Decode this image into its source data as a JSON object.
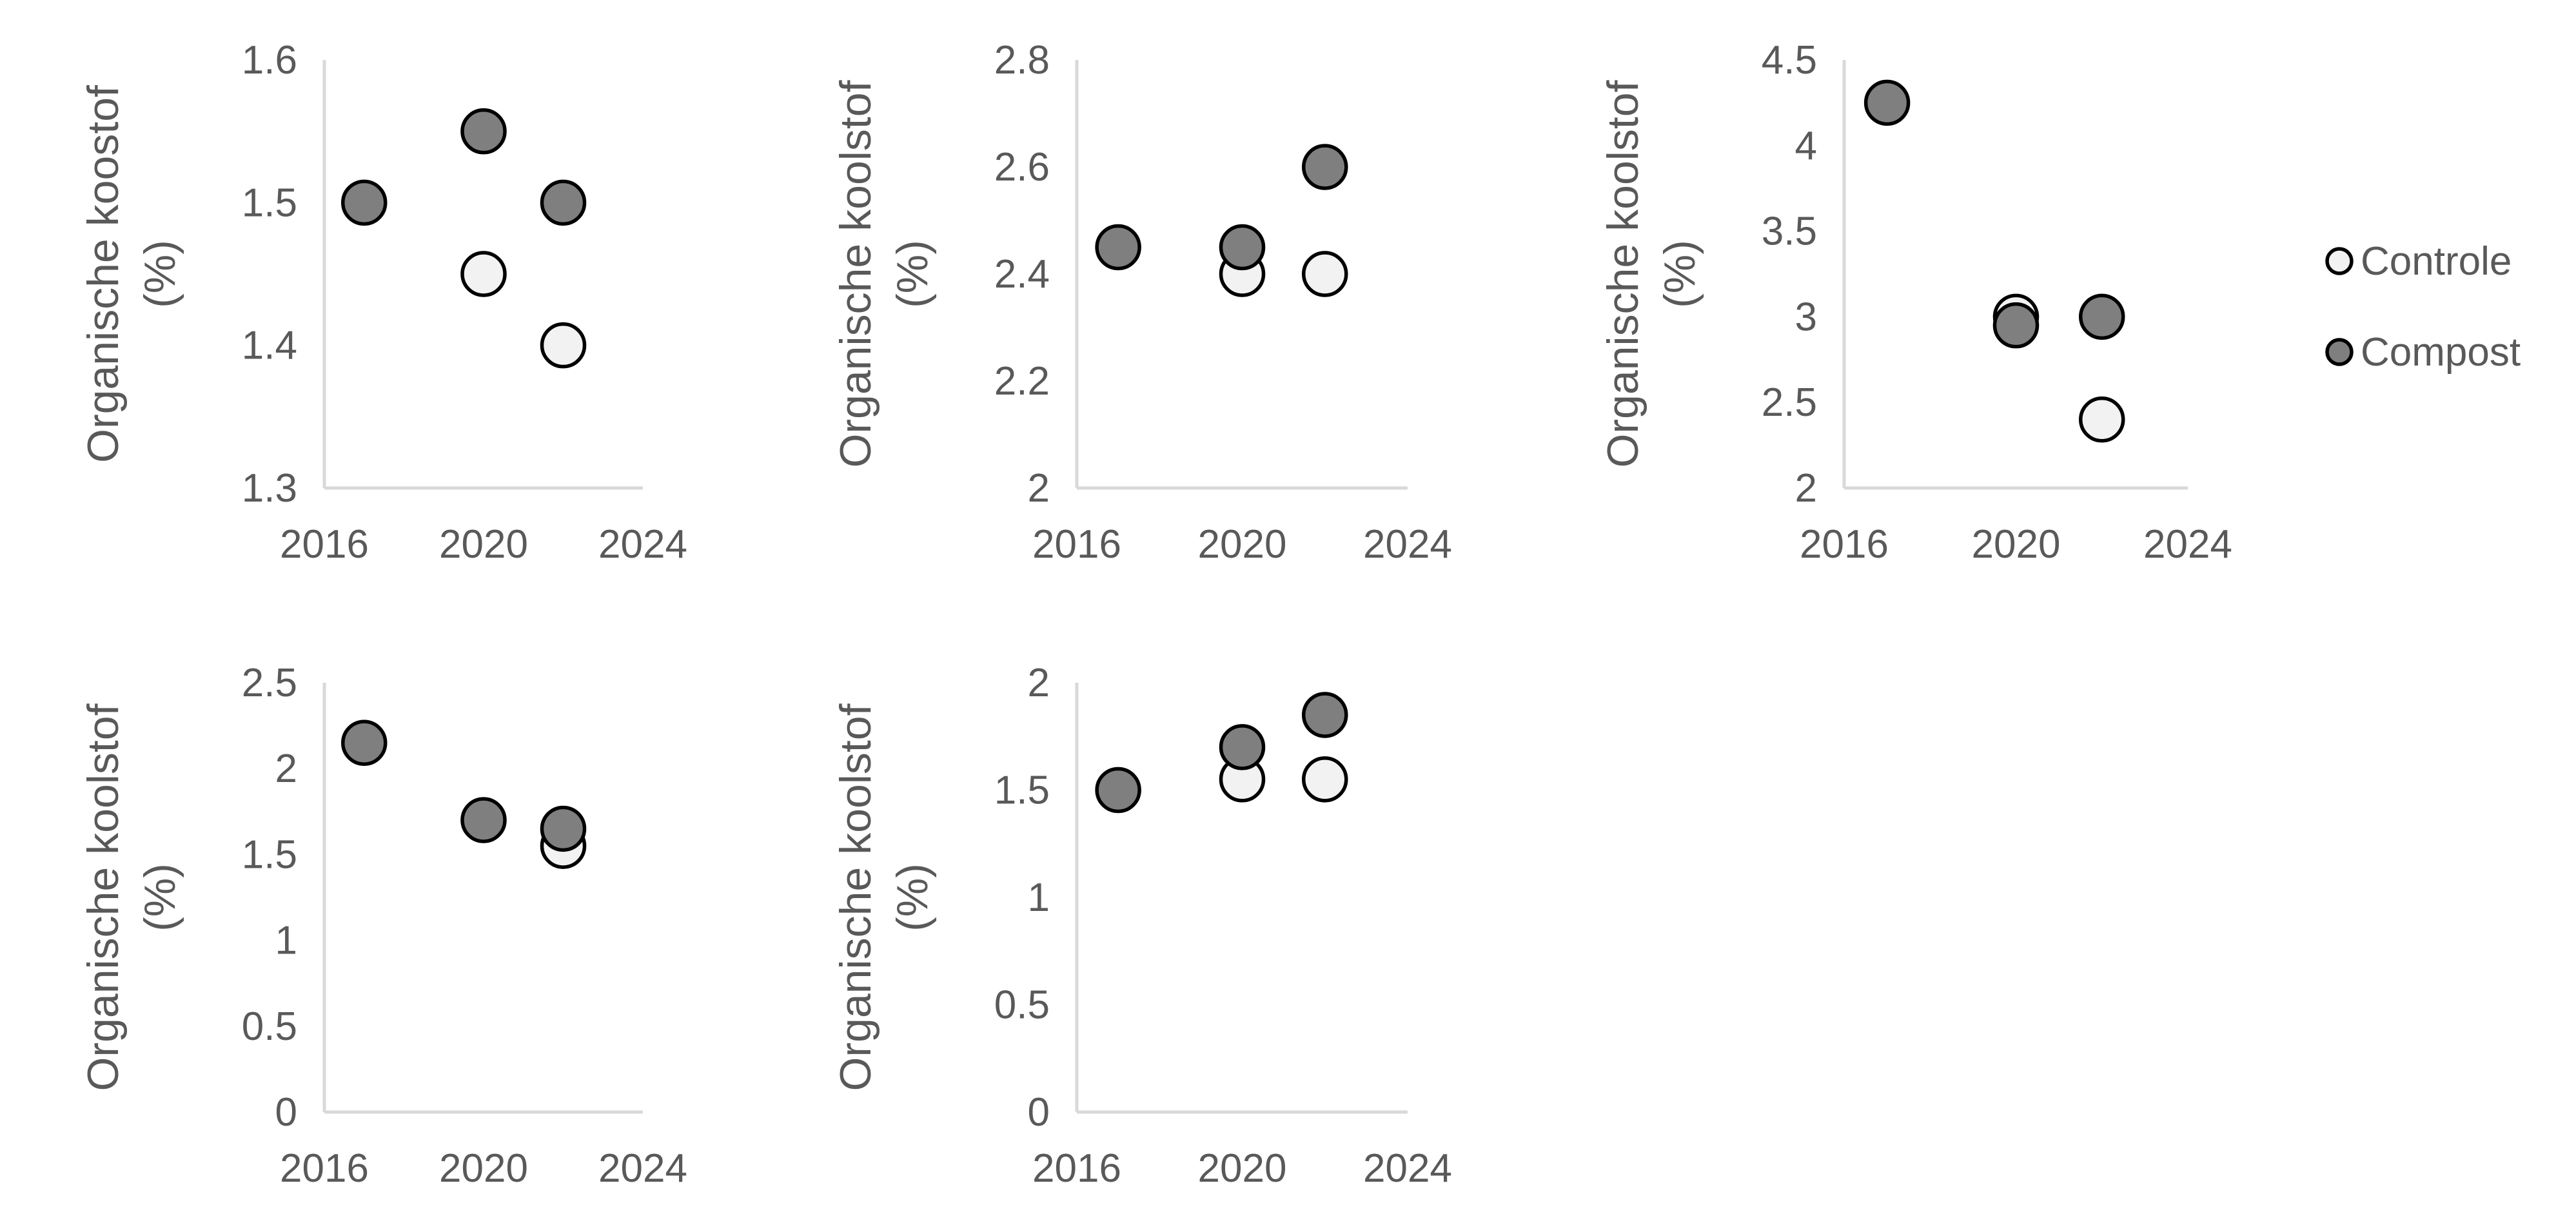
{
  "colors": {
    "controle_fill": "#f2f2f2",
    "compost_fill": "#7f7f7f",
    "marker_stroke": "#000000",
    "axis": "#d9d9d9",
    "text": "#595959"
  },
  "legend": {
    "placement": "right",
    "items": [
      {
        "label": "Controle",
        "color": "#f2f2f2"
      },
      {
        "label": "Compost",
        "color": "#7f7f7f"
      }
    ]
  },
  "chart_data": [
    {
      "type": "scatter",
      "ylabel_line1": "Organische koostof",
      "ylabel_line2": "(%)",
      "xlim": [
        2016,
        2024
      ],
      "xticks": [
        "2016",
        "2020",
        "2024"
      ],
      "ylim": [
        1.3,
        1.6
      ],
      "yticks": [
        "1.3",
        "1.4",
        "1.5",
        "1.6"
      ],
      "series": [
        {
          "name": "Controle",
          "points": [
            [
              2020,
              1.45
            ],
            [
              2022,
              1.4
            ]
          ]
        },
        {
          "name": "Compost",
          "points": [
            [
              2017,
              1.5
            ],
            [
              2020,
              1.55
            ],
            [
              2022,
              1.5
            ]
          ]
        }
      ]
    },
    {
      "type": "scatter",
      "ylabel_line1": "Organische koolstof",
      "ylabel_line2": "(%)",
      "xlim": [
        2016,
        2024
      ],
      "xticks": [
        "2016",
        "2020",
        "2024"
      ],
      "ylim": [
        2,
        2.8
      ],
      "yticks": [
        "2",
        "2.2",
        "2.4",
        "2.6",
        "2.8"
      ],
      "series": [
        {
          "name": "Controle",
          "points": [
            [
              2020,
              2.4
            ],
            [
              2022,
              2.4
            ]
          ]
        },
        {
          "name": "Compost",
          "points": [
            [
              2017,
              2.45
            ],
            [
              2020,
              2.45
            ],
            [
              2022,
              2.6
            ]
          ]
        }
      ]
    },
    {
      "type": "scatter",
      "ylabel_line1": "Organische koolstof",
      "ylabel_line2": "(%)",
      "xlim": [
        2016,
        2024
      ],
      "xticks": [
        "2016",
        "2020",
        "2024"
      ],
      "ylim": [
        2,
        4.5
      ],
      "yticks": [
        "2",
        "2.5",
        "3",
        "3.5",
        "4",
        "4.5"
      ],
      "series": [
        {
          "name": "Controle",
          "points": [
            [
              2020,
              3.0
            ],
            [
              2022,
              2.4
            ]
          ]
        },
        {
          "name": "Compost",
          "points": [
            [
              2017,
              4.25
            ],
            [
              2020,
              2.95
            ],
            [
              2022,
              3.0
            ]
          ]
        }
      ]
    },
    {
      "type": "scatter",
      "ylabel_line1": "Organische koolstof",
      "ylabel_line2": "(%)",
      "xlim": [
        2016,
        2024
      ],
      "xticks": [
        "2016",
        "2020",
        "2024"
      ],
      "ylim": [
        0,
        2.5
      ],
      "yticks": [
        "0",
        "0.5",
        "1",
        "1.5",
        "2",
        "2.5"
      ],
      "series": [
        {
          "name": "Controle",
          "points": [
            [
              2022,
              1.55
            ]
          ]
        },
        {
          "name": "Compost",
          "points": [
            [
              2017,
              2.15
            ],
            [
              2020,
              1.7
            ],
            [
              2022,
              1.65
            ]
          ]
        }
      ]
    },
    {
      "type": "scatter",
      "ylabel_line1": "Organische koolstof",
      "ylabel_line2": "(%)",
      "xlim": [
        2016,
        2024
      ],
      "xticks": [
        "2016",
        "2020",
        "2024"
      ],
      "ylim": [
        0,
        2
      ],
      "yticks": [
        "0",
        "0.5",
        "1",
        "1.5",
        "2"
      ],
      "series": [
        {
          "name": "Controle",
          "points": [
            [
              2020,
              1.55
            ],
            [
              2022,
              1.55
            ]
          ]
        },
        {
          "name": "Compost",
          "points": [
            [
              2017,
              1.5
            ],
            [
              2020,
              1.7
            ],
            [
              2022,
              1.85
            ]
          ]
        }
      ]
    }
  ]
}
